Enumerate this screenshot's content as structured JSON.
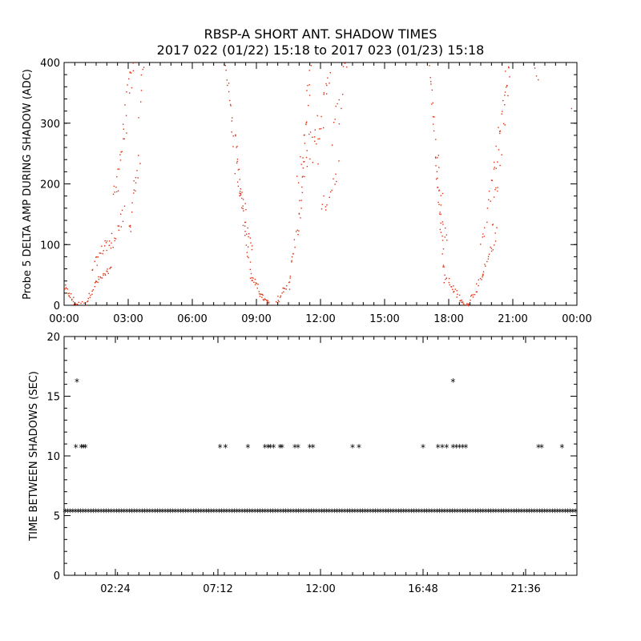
{
  "title": {
    "line1": "RBSP-A SHORT ANT. SHADOW TIMES",
    "line2": "2017 022 (01/22) 15:18 to 2017 023 (01/23) 15:18"
  },
  "chart_data": [
    {
      "id": "top",
      "type": "scatter",
      "ylabel": "Probe 5 DELTA AMP DURING SHADOW (ADC)",
      "xlim": [
        0,
        24
      ],
      "ylim": [
        0,
        400
      ],
      "xtick_values": [
        0,
        3,
        6,
        9,
        12,
        15,
        18,
        21,
        24
      ],
      "xtick_labels": [
        "00:00",
        "03:00",
        "06:00",
        "09:00",
        "12:00",
        "15:00",
        "18:00",
        "21:00",
        "00:00"
      ],
      "ytick_values": [
        0,
        100,
        200,
        300,
        400
      ],
      "ytick_labels": [
        "0",
        "100",
        "200",
        "300",
        "400"
      ],
      "color": "#e03010",
      "note": "Scatter of shadow amplitudes (approximate sampled points); each segment is [x_start, y_start, x_end, y_end, n_points, jitter] in data units (hours, ADC).",
      "segments": [
        [
          0.0,
          30,
          0.5,
          3,
          18,
          6
        ],
        [
          0.5,
          3,
          0.9,
          6,
          6,
          2
        ],
        [
          1.0,
          5,
          1.5,
          40,
          14,
          5
        ],
        [
          1.5,
          40,
          2.2,
          60,
          18,
          6
        ],
        [
          1.3,
          60,
          2.0,
          110,
          16,
          10
        ],
        [
          2.0,
          90,
          2.8,
          150,
          18,
          15
        ],
        [
          2.3,
          170,
          3.2,
          400,
          30,
          30
        ],
        [
          3.0,
          120,
          3.5,
          250,
          16,
          25
        ],
        [
          3.5,
          320,
          3.7,
          400,
          6,
          20
        ],
        [
          7.5,
          400,
          8.2,
          200,
          24,
          20
        ],
        [
          8.2,
          200,
          8.7,
          60,
          22,
          15
        ],
        [
          8.0,
          230,
          8.8,
          90,
          20,
          20
        ],
        [
          8.7,
          50,
          9.3,
          12,
          20,
          6
        ],
        [
          9.3,
          12,
          9.6,
          3,
          10,
          3
        ],
        [
          9.9,
          3,
          10.5,
          40,
          16,
          6
        ],
        [
          10.5,
          40,
          11.0,
          150,
          16,
          15
        ],
        [
          11.0,
          150,
          11.5,
          400,
          22,
          30
        ],
        [
          10.9,
          200,
          11.8,
          280,
          20,
          40
        ],
        [
          11.8,
          250,
          12.4,
          400,
          16,
          30
        ],
        [
          12.0,
          150,
          12.8,
          230,
          14,
          20
        ],
        [
          12.5,
          270,
          13.2,
          400,
          12,
          30
        ],
        [
          17.1,
          400,
          17.5,
          180,
          20,
          20
        ],
        [
          17.5,
          180,
          17.8,
          50,
          16,
          12
        ],
        [
          17.4,
          260,
          17.9,
          90,
          14,
          20
        ],
        [
          17.8,
          50,
          18.6,
          5,
          22,
          6
        ],
        [
          18.6,
          5,
          18.9,
          2,
          8,
          2
        ],
        [
          18.9,
          5,
          19.6,
          50,
          18,
          6
        ],
        [
          19.6,
          50,
          20.2,
          120,
          16,
          10
        ],
        [
          19.5,
          100,
          20.2,
          250,
          16,
          20
        ],
        [
          20.2,
          250,
          20.8,
          400,
          14,
          25
        ],
        [
          20.0,
          130,
          20.8,
          380,
          18,
          30
        ],
        [
          22.0,
          390,
          22.2,
          375,
          3,
          5
        ],
        [
          23.7,
          325,
          23.7,
          325,
          1,
          0
        ]
      ]
    },
    {
      "id": "bottom",
      "type": "scatter",
      "ylabel": "TIME BETWEEN SHADOWS (SEC)",
      "xlim": [
        0,
        24
      ],
      "ylim": [
        0,
        20
      ],
      "xtick_values": [
        2.4,
        7.2,
        12.0,
        16.8,
        21.6
      ],
      "xtick_labels": [
        "02:24",
        "07:12",
        "12:00",
        "16:48",
        "21:36"
      ],
      "ytick_values": [
        0,
        5,
        10,
        15,
        20
      ],
      "ytick_labels": [
        "0",
        "5",
        "10",
        "15",
        "20"
      ],
      "color": "#000000",
      "marker": "*",
      "baseline": {
        "y": 5.4,
        "x_start": 0.05,
        "x_end": 23.95,
        "step": 0.12
      },
      "points_10_8": [
        0.55,
        0.8,
        0.9,
        1.0,
        7.3,
        7.55,
        8.6,
        9.4,
        9.55,
        9.65,
        9.8,
        10.1,
        10.2,
        10.8,
        10.95,
        11.5,
        11.65,
        13.5,
        13.8,
        16.8,
        17.5,
        17.7,
        17.9,
        18.2,
        18.35,
        18.5,
        18.65,
        18.8,
        22.2,
        22.35,
        23.3
      ],
      "points_16_3": [
        0.6,
        18.2
      ]
    }
  ]
}
